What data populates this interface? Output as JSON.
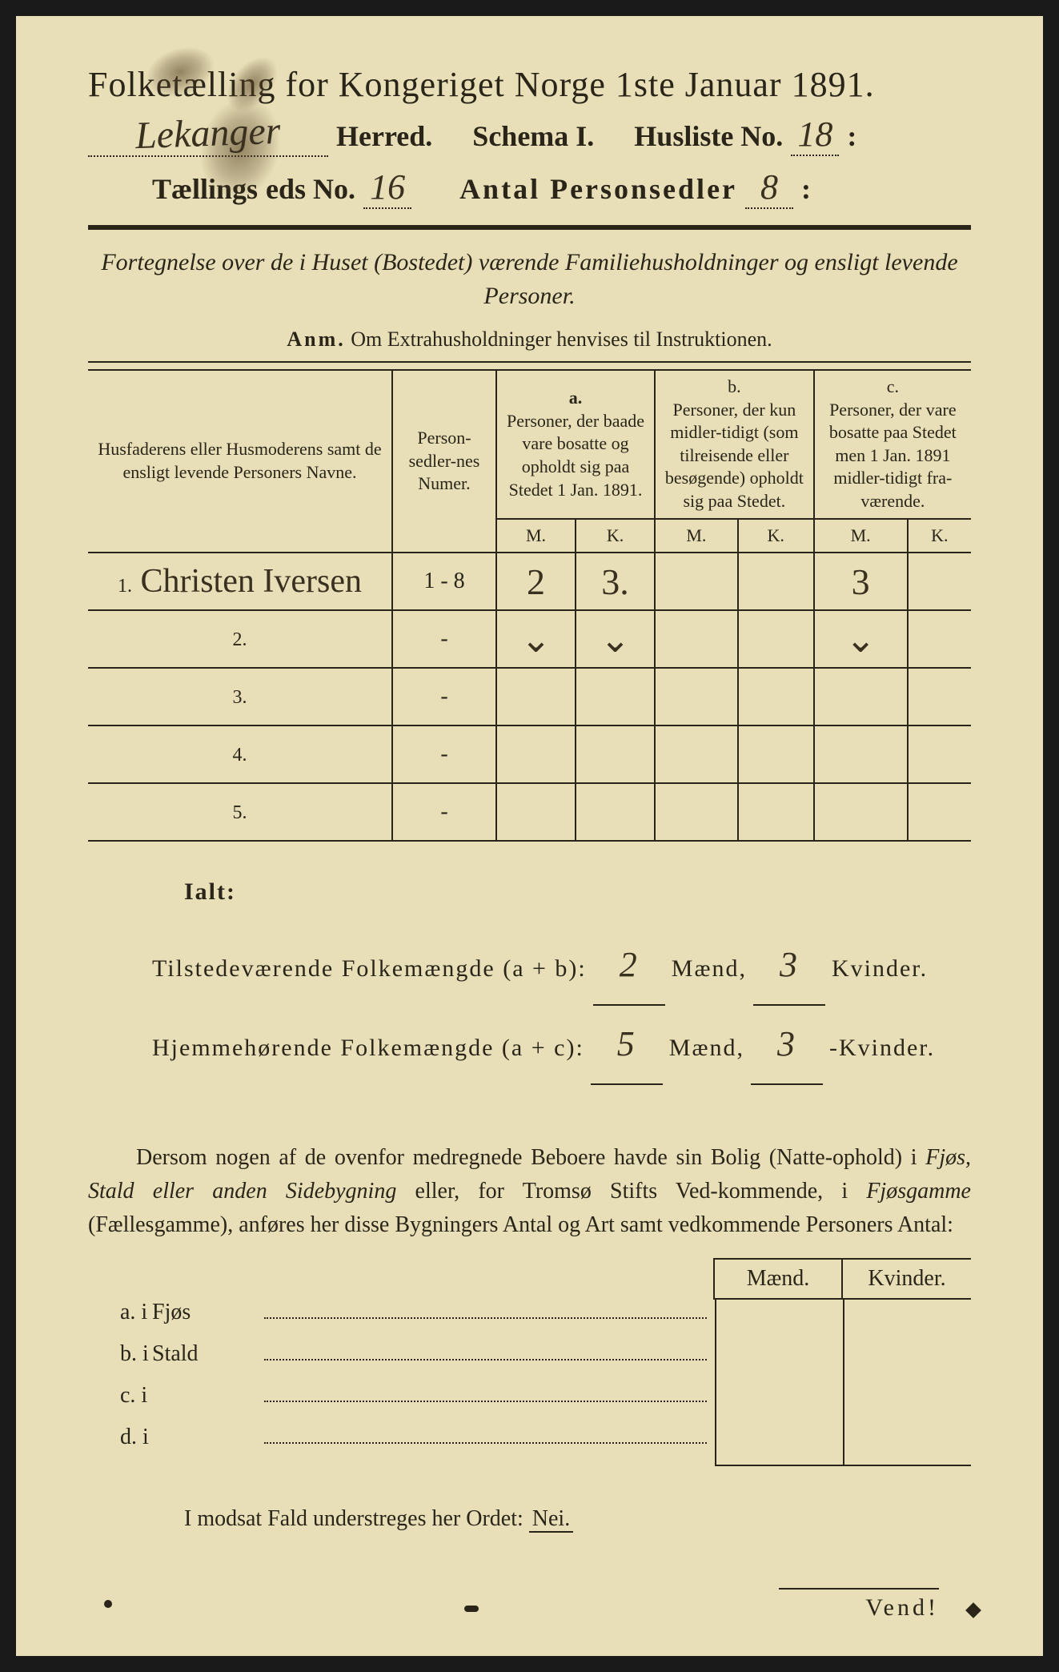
{
  "header": {
    "title": "Folketælling for Kongeriget Norge 1ste Januar 1891.",
    "herred_value": "Lekanger",
    "herred_label": "Herred.",
    "schema_label": "Schema I.",
    "husliste_label": "Husliste No.",
    "husliste_value": "18",
    "kreds_label_pre": "Tællings",
    "kreds_label_post": "eds No.",
    "kreds_value": "16",
    "personsedler_label": "Antal Personsedler",
    "personsedler_value": "8"
  },
  "subtitle": "Fortegnelse over de i Huset (Bostedet) værende Familiehusholdninger og ensligt levende Personer.",
  "anm": {
    "label": "Anm.",
    "text": "Om Extrahusholdninger henvises til Instruktionen."
  },
  "table": {
    "col_names": "Husfaderens eller Husmoderens samt de ensligt levende Personers Navne.",
    "col_numer": "Person-sedler-nes Numer.",
    "col_a_label": "a.",
    "col_a": "Personer, der baade vare bosatte og opholdt sig paa Stedet 1 Jan. 1891.",
    "col_b_label": "b.",
    "col_b": "Personer, der kun midler-tidigt (som tilreisende eller besøgende) opholdt sig paa Stedet.",
    "col_c_label": "c.",
    "col_c": "Personer, der vare bosatte paa Stedet men 1 Jan. 1891 midler-tidigt fra-værende.",
    "m": "M.",
    "k": "K.",
    "rows": [
      {
        "num": "1.",
        "name": "Christen Iversen",
        "numer": "1 - 8",
        "a_m": "2",
        "a_k": "3.",
        "b_m": "",
        "b_k": "",
        "c_m": "3",
        "c_k": ""
      },
      {
        "num": "2.",
        "name": "",
        "numer": "-",
        "a_m": "⌄",
        "a_k": "⌄",
        "b_m": "",
        "b_k": "",
        "c_m": "⌄",
        "c_k": ""
      },
      {
        "num": "3.",
        "name": "",
        "numer": "-",
        "a_m": "",
        "a_k": "",
        "b_m": "",
        "b_k": "",
        "c_m": "",
        "c_k": ""
      },
      {
        "num": "4.",
        "name": "",
        "numer": "-",
        "a_m": "",
        "a_k": "",
        "b_m": "",
        "b_k": "",
        "c_m": "",
        "c_k": ""
      },
      {
        "num": "5.",
        "name": "",
        "numer": "-",
        "a_m": "",
        "a_k": "",
        "b_m": "",
        "b_k": "",
        "c_m": "",
        "c_k": ""
      }
    ]
  },
  "totals": {
    "ialt": "Ialt:",
    "line1_label": "Tilstedeværende Folkemængde (a + b):",
    "line1_m": "2",
    "line1_k": "3",
    "line2_label": "Hjemmehørende Folkemængde (a + c):",
    "line2_m": "5",
    "line2_k": "3",
    "maend": "Mænd,",
    "kvinder": "Kvinder.",
    "kvinder2": "-Kvinder."
  },
  "paragraph": {
    "text1": "Dersom nogen af de ovenfor medregnede Beboere havde sin Bolig (Natte-ophold) i ",
    "ital1": "Fjøs, Stald eller anden Sidebygning",
    "text2": " eller, for Tromsø Stifts Ved-kommende, i ",
    "ital2": "Fjøsgamme",
    "text3": " (Fællesgamme), anføres her disse Bygningers Antal og Art samt vedkommende Personers Antal:"
  },
  "buildings": {
    "maend": "Mænd.",
    "kvinder": "Kvinder.",
    "rows": [
      {
        "label": "a.  i",
        "name": "Fjøs"
      },
      {
        "label": "b.  i",
        "name": "Stald"
      },
      {
        "label": "c.  i",
        "name": ""
      },
      {
        "label": "d.  i",
        "name": ""
      }
    ]
  },
  "footer": {
    "text": "I modsat Fald understreges her Ordet: ",
    "nei": "Nei.",
    "vend": "Vend!"
  },
  "colors": {
    "paper": "#e8dfb8",
    "ink": "#2a2518",
    "handwriting": "#3a3020"
  }
}
